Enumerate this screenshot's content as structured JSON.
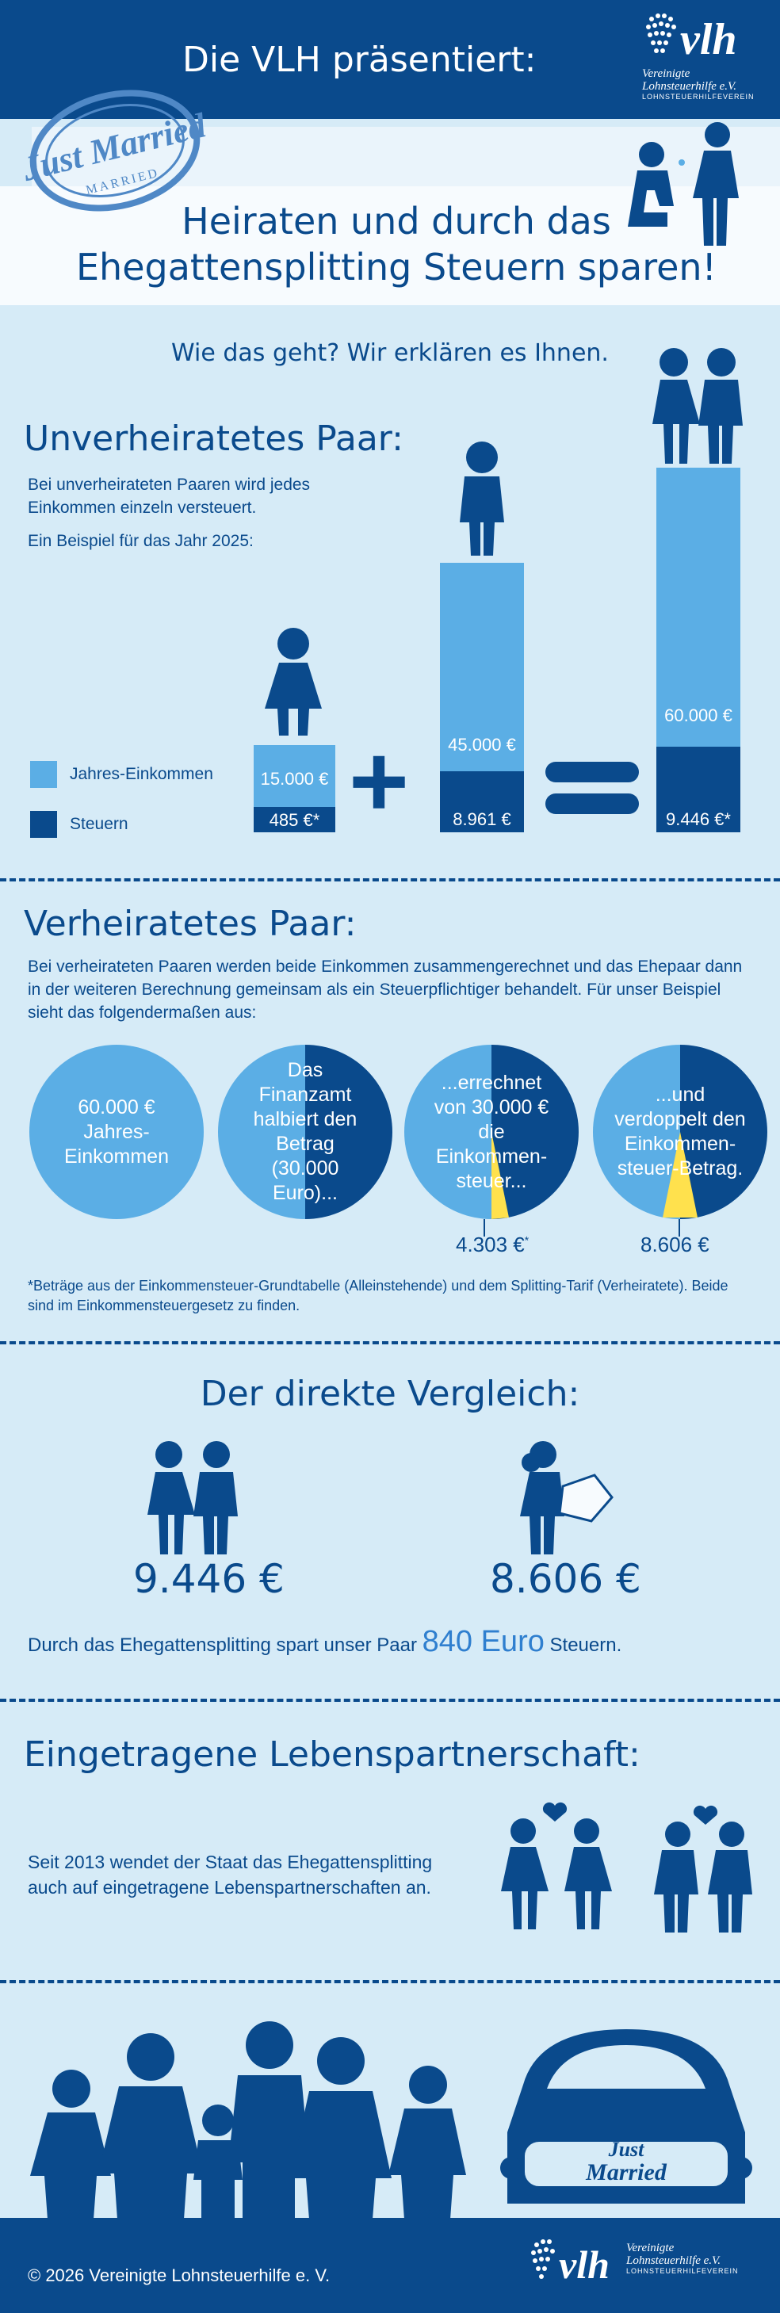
{
  "header": {
    "title": "Die VLH präsentiert:",
    "logo": {
      "line1": "Vereinigte",
      "line2": "Lohnsteuerhilfe e.V.",
      "line3": "LOHNSTEUERHILFEVEREIN"
    }
  },
  "banner": {
    "stamp_text": "Just Married",
    "stamp_sub": "MARRIED",
    "title_line1": "Heiraten und durch das",
    "title_line2": "Ehegattensplitting Steuern sparen!"
  },
  "intro": "Wie das geht? Wir erklären es Ihnen.",
  "unmarried": {
    "heading": "Unverheiratetes Paar:",
    "text": "Bei unverheirateten Paaren wird jedes Einkommen einzeln versteuert.",
    "example": "Ein Beispiel für das Jahr 2025:",
    "legend_income": "Jahres-Einkommen",
    "legend_tax": "Steuern",
    "bars": [
      {
        "income": "15.000 €",
        "tax": "485 €*"
      },
      {
        "income": "45.000 €",
        "tax": "8.961 €"
      },
      {
        "income": "60.000 €",
        "tax": "9.446 €*"
      }
    ],
    "operators": [
      "+",
      "="
    ]
  },
  "married": {
    "heading": "Verheiratetes Paar:",
    "text": "Bei verheirateten Paaren werden beide Einkommen zusammengerechnet und das Ehepaar dann in der weiteren Berechnung gemeinsam als ein Steuerpflichtiger behandelt. Für unser Beispiel sieht das folgendermaßen aus:",
    "circles": [
      "60.000 € Jahres-Einkommen",
      "Das Finanzamt halbiert den Betrag (30.000 Euro)...",
      "...errechnet von 30.000 € die Einkommen-steuer...",
      "...und verdoppelt den Einkommen-steuer-Betrag."
    ],
    "amount1": "4.303 €",
    "amount1_star": "*",
    "amount2": "8.606 €",
    "footnote": "*Beträge aus der Einkommensteuer-Grundtabelle (Alleinstehende) und dem Splitting-Tarif (Verheiratete). Beide sind im Einkommensteuergesetz zu finden."
  },
  "comparison": {
    "heading": "Der direkte Vergleich:",
    "unmarried_value": "9.446 €",
    "married_value": "8.606 €",
    "text_before": "Durch das Ehegattensplitting spart unser Paar",
    "savings": "840 Euro",
    "text_after": "Steuern."
  },
  "partnership": {
    "heading": "Eingetragene Lebenspartnerschaft:",
    "text": "Seit 2013 wendet der Staat das Ehegattensplitting auch auf eingetragene Lebenspartnerschaften an."
  },
  "car": {
    "text_line1": "Just",
    "text_line2": "Married"
  },
  "footer": {
    "copyright": "© 2026 Vereinigte Lohnsteuerhilfe e. V.",
    "logo": {
      "line1": "Vereinigte",
      "line2": "Lohnsteuerhilfe e.V.",
      "line3": "LOHNSTEUERHILFEVEREIN"
    }
  },
  "colors": {
    "dark": "#0a4a8c",
    "light": "#5baee5",
    "bg": "#d6ebf7",
    "accent": "#ffe14d"
  }
}
